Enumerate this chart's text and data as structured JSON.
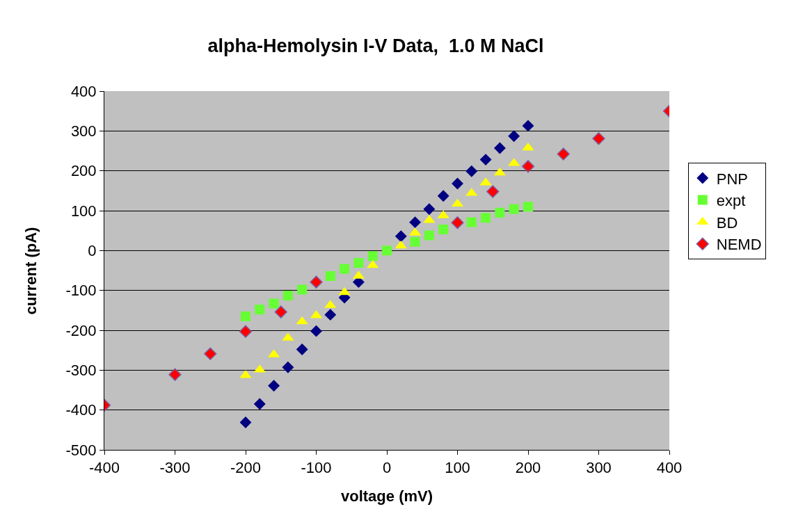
{
  "chart_data": {
    "type": "scatter",
    "title": "alpha-Hemolysin I-V Data,  1.0 M NaCl",
    "xlabel": "voltage (mV)",
    "ylabel": "current (pA)",
    "xlim": [
      -400,
      400
    ],
    "xticks": [
      -400,
      -300,
      -200,
      -100,
      0,
      100,
      200,
      300,
      400
    ],
    "ylim": [
      -500,
      400
    ],
    "yticks": [
      -500,
      -400,
      -300,
      -200,
      -100,
      0,
      100,
      200,
      300,
      400
    ],
    "grid": "y",
    "legend": "right",
    "series": [
      {
        "name": "PNP",
        "color": "#000080",
        "marker": "diamond",
        "x": [
          -200,
          -180,
          -160,
          -140,
          -120,
          -100,
          -80,
          -60,
          -40,
          -20,
          20,
          40,
          60,
          80,
          100,
          120,
          140,
          160,
          180,
          200
        ],
        "values": [
          -431,
          -385,
          -339,
          -293,
          -248,
          -202,
          -161,
          -118,
          -79,
          null,
          36,
          71,
          104,
          137,
          168,
          199,
          228,
          257,
          287,
          313
        ]
      },
      {
        "name": "expt",
        "color": "#66ff33",
        "marker": "square",
        "x": [
          -200,
          -180,
          -160,
          -140,
          -120,
          -100,
          -80,
          -60,
          -40,
          -20,
          0,
          20,
          40,
          60,
          80,
          100,
          120,
          140,
          160,
          180,
          200
        ],
        "values": [
          -165,
          -148,
          -133,
          -113,
          -98,
          null,
          -64,
          -46,
          -31,
          -14,
          0,
          null,
          22,
          38,
          53,
          null,
          71,
          82,
          95,
          104,
          110
        ]
      },
      {
        "name": "BD",
        "color": "#ffff00",
        "marker": "triangle",
        "x": [
          -200,
          -180,
          -160,
          -140,
          -120,
          -100,
          -80,
          -60,
          -40,
          -20,
          20,
          40,
          60,
          80,
          100,
          120,
          140,
          160,
          180,
          200
        ],
        "values": [
          -313,
          -299,
          -261,
          -219,
          -178,
          -163,
          -137,
          -105,
          -64,
          -37,
          12,
          44,
          76,
          88,
          117,
          144,
          170,
          195,
          219,
          258
        ]
      },
      {
        "name": "NEMD",
        "color": "#ff0000",
        "marker": "diamond",
        "x": [
          -400,
          -300,
          -250,
          -200,
          -150,
          -100,
          100,
          150,
          200,
          250,
          300,
          400
        ],
        "values": [
          -388,
          -311,
          -259,
          -203,
          -154,
          -79,
          70,
          148,
          211,
          242,
          281,
          350
        ]
      }
    ]
  }
}
